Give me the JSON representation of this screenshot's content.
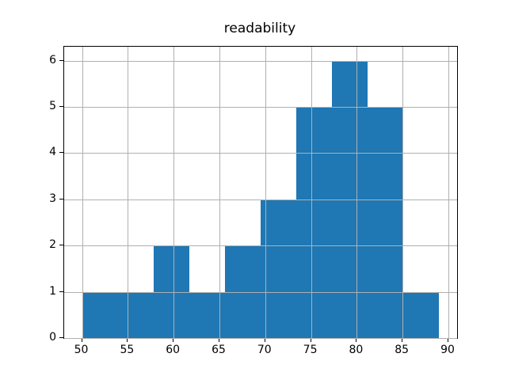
{
  "chart_data": {
    "type": "bar",
    "subtype": "histogram",
    "title": "readability",
    "bin_edges": [
      50,
      53.9,
      57.8,
      61.7,
      65.6,
      69.5,
      73.4,
      77.3,
      81.2,
      85.1,
      89
    ],
    "counts": [
      1,
      1,
      2,
      1,
      2,
      3,
      5,
      6,
      5,
      1
    ],
    "xticks": [
      50,
      55,
      60,
      65,
      70,
      75,
      80,
      85,
      90
    ],
    "yticks": [
      0,
      1,
      2,
      3,
      4,
      5,
      6
    ],
    "xlim": [
      48.05,
      90.95
    ],
    "ylim": [
      0,
      6.3
    ],
    "xlabel": "",
    "ylabel": "",
    "grid": "on",
    "grid_above_bars": true,
    "bar_color": "#1f77b4",
    "grid_color": "#b0b0b0",
    "axis_color": "#000000",
    "background_color": "#ffffff",
    "legend": "none"
  }
}
